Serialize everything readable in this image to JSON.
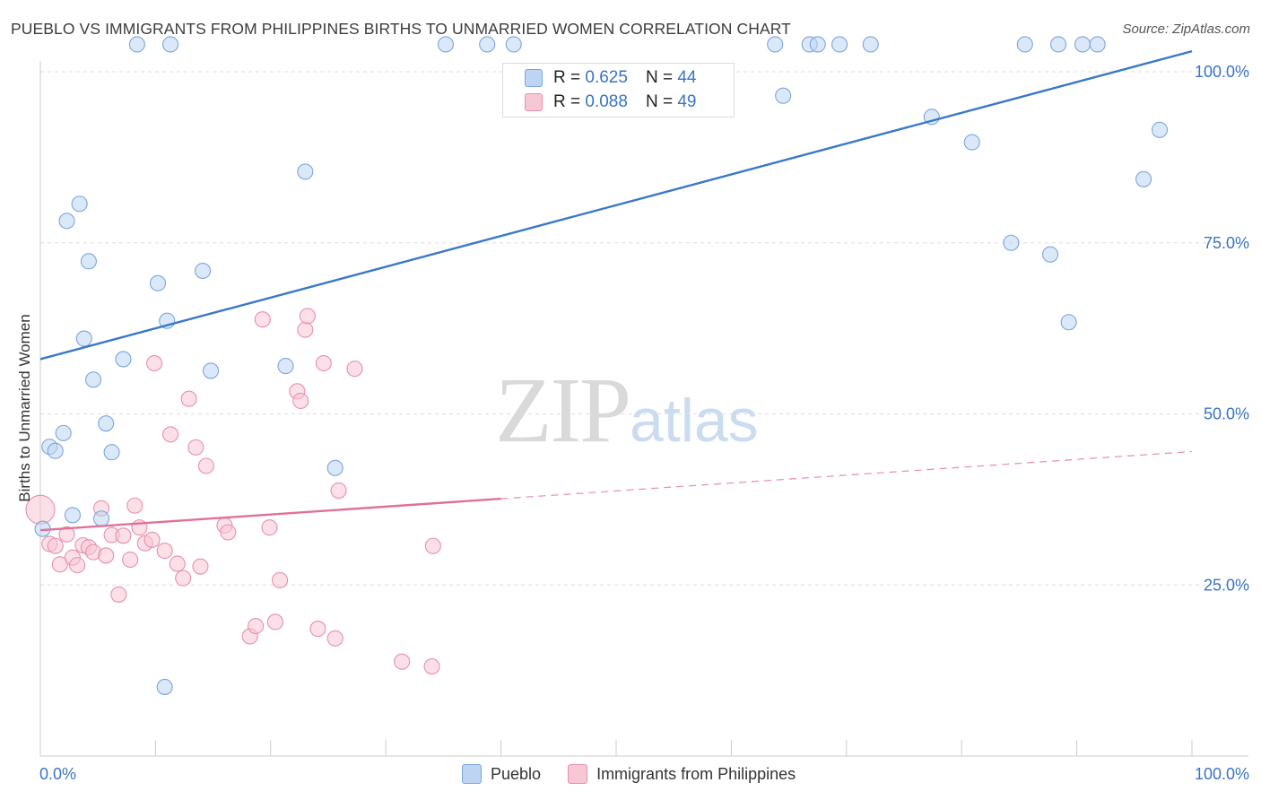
{
  "title": "PUEBLO VS IMMIGRANTS FROM PHILIPPINES BIRTHS TO UNMARRIED WOMEN CORRELATION CHART",
  "source": "Source: ZipAtlas.com",
  "watermark": {
    "zip": "ZIP",
    "atlas": "atlas"
  },
  "stats": {
    "r_label": "R =",
    "n_label": "N =",
    "pueblo": {
      "r": "0.625",
      "n": "44"
    },
    "philippines": {
      "r": "0.088",
      "n": "49"
    }
  },
  "colors": {
    "blue": "#3a78c9",
    "blue_fill": "#bdd5f3",
    "pink": "#e0709a",
    "pink_fill": "#f8c7d6",
    "grid": "#dddddd"
  },
  "chart_data": {
    "type": "scatter",
    "title": "PUEBLO VS IMMIGRANTS FROM PHILIPPINES BIRTHS TO UNMARRIED WOMEN CORRELATION CHART",
    "xlabel": "",
    "ylabel": "Births to Unmarried Women",
    "xlim": [
      0,
      100
    ],
    "ylim": [
      0,
      100
    ],
    "x_tick_labels": [
      "0.0%",
      "100.0%"
    ],
    "y_ticks": [
      25,
      50,
      75,
      100
    ],
    "y_tick_labels": [
      "25.0%",
      "50.0%",
      "75.0%",
      "100.0%"
    ],
    "legend_position": "bottom-center",
    "series": [
      {
        "name": "Pueblo",
        "r": 0.625,
        "n": 44,
        "trend": {
          "x": [
            0,
            100
          ],
          "y": [
            58.0,
            103.0
          ],
          "solid_until": 100
        },
        "points": [
          [
            8.4,
            104.0
          ],
          [
            11.3,
            104.0
          ],
          [
            35.2,
            104.0
          ],
          [
            38.8,
            104.0
          ],
          [
            41.1,
            104.0
          ],
          [
            63.8,
            104.0
          ],
          [
            66.8,
            104.0
          ],
          [
            67.5,
            104.0
          ],
          [
            69.4,
            104.0
          ],
          [
            72.1,
            104.0
          ],
          [
            85.5,
            104.0
          ],
          [
            88.4,
            104.0
          ],
          [
            90.5,
            104.0
          ],
          [
            91.8,
            104.0
          ],
          [
            64.5,
            96.5
          ],
          [
            77.4,
            93.4
          ],
          [
            80.9,
            89.7
          ],
          [
            97.2,
            91.5
          ],
          [
            95.8,
            84.3
          ],
          [
            23.0,
            85.4
          ],
          [
            3.4,
            80.7
          ],
          [
            2.3,
            78.2
          ],
          [
            4.2,
            72.3
          ],
          [
            14.1,
            70.9
          ],
          [
            10.2,
            69.1
          ],
          [
            84.3,
            75.0
          ],
          [
            87.7,
            73.3
          ],
          [
            89.3,
            63.4
          ],
          [
            11.0,
            63.6
          ],
          [
            3.8,
            61.0
          ],
          [
            7.2,
            58.0
          ],
          [
            21.3,
            57.0
          ],
          [
            14.8,
            56.3
          ],
          [
            4.6,
            55.0
          ],
          [
            5.7,
            48.6
          ],
          [
            2.0,
            47.2
          ],
          [
            0.8,
            45.2
          ],
          [
            1.3,
            44.6
          ],
          [
            6.2,
            44.4
          ],
          [
            25.6,
            42.1
          ],
          [
            2.8,
            35.2
          ],
          [
            5.3,
            34.7
          ],
          [
            0.2,
            33.2
          ],
          [
            10.8,
            10.1
          ]
        ]
      },
      {
        "name": "Immigrants from Philippines",
        "r": 0.088,
        "n": 49,
        "trend": {
          "x": [
            0,
            100
          ],
          "y": [
            33.0,
            44.5
          ],
          "solid_until": 40
        },
        "points": [
          [
            0.0,
            36.0
          ],
          [
            0.8,
            31.0
          ],
          [
            1.3,
            30.7
          ],
          [
            1.7,
            28.0
          ],
          [
            2.3,
            32.4
          ],
          [
            2.8,
            29.0
          ],
          [
            3.2,
            27.9
          ],
          [
            3.7,
            30.8
          ],
          [
            4.2,
            30.5
          ],
          [
            4.6,
            29.8
          ],
          [
            5.3,
            36.2
          ],
          [
            5.7,
            29.3
          ],
          [
            6.2,
            32.3
          ],
          [
            6.8,
            23.6
          ],
          [
            7.2,
            32.2
          ],
          [
            7.8,
            28.7
          ],
          [
            8.2,
            36.6
          ],
          [
            8.6,
            33.4
          ],
          [
            9.1,
            31.1
          ],
          [
            9.7,
            31.6
          ],
          [
            9.9,
            57.4
          ],
          [
            10.8,
            30.0
          ],
          [
            11.3,
            47.0
          ],
          [
            11.9,
            28.1
          ],
          [
            12.4,
            26.0
          ],
          [
            12.9,
            52.2
          ],
          [
            13.5,
            45.1
          ],
          [
            13.9,
            27.7
          ],
          [
            14.4,
            42.4
          ],
          [
            16.0,
            33.7
          ],
          [
            16.3,
            32.7
          ],
          [
            18.2,
            17.5
          ],
          [
            18.7,
            19.0
          ],
          [
            19.3,
            63.8
          ],
          [
            19.9,
            33.4
          ],
          [
            20.4,
            19.6
          ],
          [
            20.8,
            25.7
          ],
          [
            22.3,
            53.3
          ],
          [
            22.6,
            51.9
          ],
          [
            23.0,
            62.3
          ],
          [
            23.2,
            64.3
          ],
          [
            24.1,
            18.6
          ],
          [
            24.6,
            57.4
          ],
          [
            25.6,
            17.2
          ],
          [
            25.9,
            38.8
          ],
          [
            27.3,
            56.6
          ],
          [
            31.4,
            13.8
          ],
          [
            34.0,
            13.1
          ],
          [
            34.1,
            30.7
          ]
        ]
      }
    ]
  }
}
